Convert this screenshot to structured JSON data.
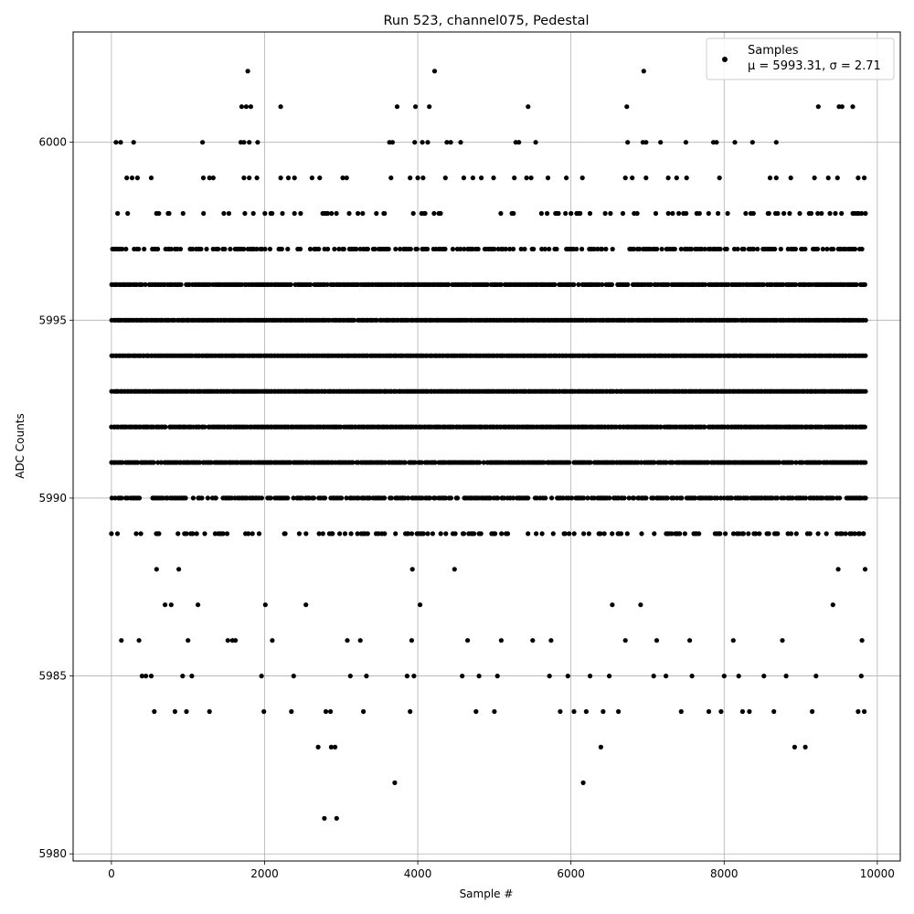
{
  "chart_data": {
    "type": "scatter",
    "title": "Run 523, channel075, Pedestal",
    "xlabel": "Sample #",
    "ylabel": "ADC Counts",
    "xlim": [
      -500,
      10300
    ],
    "ylim": [
      5979.8,
      6003.1
    ],
    "xticks": [
      0,
      2000,
      4000,
      6000,
      8000,
      10000
    ],
    "yticks": [
      5980,
      5985,
      5990,
      5995,
      6000
    ],
    "grid": true,
    "legend_position": "top-right",
    "series": [
      {
        "name": "Samples",
        "stats_label": "μ = 5993.31, σ = 2.71",
        "color": "#000000",
        "marker": "circle",
        "mean": 5993.31,
        "std": 2.71,
        "n_points": 9836,
        "x_range": [
          0,
          9835
        ],
        "points": [
          [
            0,
            5989
          ],
          [
            130,
            5986
          ],
          [
            360,
            5986
          ],
          [
            400,
            5985
          ],
          [
            450,
            5985
          ],
          [
            520,
            5985
          ],
          [
            560,
            5984
          ],
          [
            590,
            5988
          ],
          [
            700,
            5987
          ],
          [
            780,
            5987
          ],
          [
            830,
            5984
          ],
          [
            880,
            5988
          ],
          [
            930,
            5985
          ],
          [
            980,
            5984
          ],
          [
            1000,
            5986
          ],
          [
            1050,
            5985
          ],
          [
            1130,
            5987
          ],
          [
            1280,
            5984
          ],
          [
            1520,
            5986
          ],
          [
            1580,
            5986
          ],
          [
            1620,
            5986
          ],
          [
            1960,
            5985
          ],
          [
            1990,
            5984
          ],
          [
            2010,
            5987
          ],
          [
            2100,
            5986
          ],
          [
            2350,
            5984
          ],
          [
            2380,
            5985
          ],
          [
            2540,
            5987
          ],
          [
            2700,
            5983
          ],
          [
            2780,
            5981
          ],
          [
            2870,
            5983
          ],
          [
            2920,
            5983
          ],
          [
            2940,
            5981
          ],
          [
            2800,
            5984
          ],
          [
            2860,
            5984
          ],
          [
            3080,
            5986
          ],
          [
            3120,
            5985
          ],
          [
            3250,
            5986
          ],
          [
            3290,
            5984
          ],
          [
            3330,
            5985
          ],
          [
            3700,
            5982
          ],
          [
            3860,
            5985
          ],
          [
            3900,
            5984
          ],
          [
            3920,
            5986
          ],
          [
            3950,
            5985
          ],
          [
            3930,
            5988
          ],
          [
            4030,
            5987
          ],
          [
            4480,
            5988
          ],
          [
            4580,
            5985
          ],
          [
            4650,
            5986
          ],
          [
            4760,
            5984
          ],
          [
            4800,
            5985
          ],
          [
            5000,
            5984
          ],
          [
            5040,
            5985
          ],
          [
            5090,
            5986
          ],
          [
            5500,
            5986
          ],
          [
            5720,
            5985
          ],
          [
            5740,
            5986
          ],
          [
            5860,
            5984
          ],
          [
            5960,
            5985
          ],
          [
            6040,
            5984
          ],
          [
            6160,
            5982
          ],
          [
            6200,
            5984
          ],
          [
            6250,
            5985
          ],
          [
            6390,
            5983
          ],
          [
            6420,
            5984
          ],
          [
            6500,
            5985
          ],
          [
            6540,
            5987
          ],
          [
            6620,
            5984
          ],
          [
            6710,
            5986
          ],
          [
            6910,
            5987
          ],
          [
            7080,
            5985
          ],
          [
            7120,
            5986
          ],
          [
            7240,
            5985
          ],
          [
            7440,
            5984
          ],
          [
            7550,
            5986
          ],
          [
            7580,
            5985
          ],
          [
            7800,
            5984
          ],
          [
            7960,
            5984
          ],
          [
            8000,
            5985
          ],
          [
            8120,
            5986
          ],
          [
            8190,
            5985
          ],
          [
            8240,
            5984
          ],
          [
            8330,
            5984
          ],
          [
            8520,
            5985
          ],
          [
            8650,
            5984
          ],
          [
            8760,
            5986
          ],
          [
            8810,
            5985
          ],
          [
            8920,
            5983
          ],
          [
            9060,
            5983
          ],
          [
            9150,
            5984
          ],
          [
            9200,
            5985
          ],
          [
            9420,
            5987
          ],
          [
            9490,
            5988
          ],
          [
            9750,
            5984
          ],
          [
            9790,
            5985
          ],
          [
            9830,
            5984
          ],
          [
            9800,
            5986
          ],
          [
            9840,
            5988
          ],
          [
            9820,
            5989
          ],
          [
            1780,
            6002
          ],
          [
            4220,
            6002
          ],
          [
            6950,
            6002
          ],
          [
            1700,
            6001
          ],
          [
            1760,
            6001
          ],
          [
            1820,
            6001
          ],
          [
            2210,
            6001
          ],
          [
            3730,
            6001
          ],
          [
            3970,
            6001
          ],
          [
            4150,
            6001
          ],
          [
            5440,
            6001
          ],
          [
            6730,
            6001
          ],
          [
            9230,
            6001
          ],
          [
            9500,
            6001
          ],
          [
            9540,
            6001
          ],
          [
            9680,
            6001
          ],
          [
            60,
            6000
          ],
          [
            120,
            6000
          ],
          [
            290,
            6000
          ],
          [
            1190,
            6000
          ],
          [
            1690,
            6000
          ],
          [
            1730,
            6000
          ],
          [
            1800,
            6000
          ],
          [
            1910,
            6000
          ],
          [
            3630,
            6000
          ],
          [
            3670,
            6000
          ],
          [
            3960,
            6000
          ],
          [
            4060,
            6000
          ],
          [
            4130,
            6000
          ],
          [
            4380,
            6000
          ],
          [
            4430,
            6000
          ],
          [
            4560,
            6000
          ],
          [
            5280,
            6000
          ],
          [
            5320,
            6000
          ],
          [
            5540,
            6000
          ],
          [
            6740,
            6000
          ],
          [
            6940,
            6000
          ],
          [
            6980,
            6000
          ],
          [
            7170,
            6000
          ],
          [
            7500,
            6000
          ],
          [
            7860,
            6000
          ],
          [
            7900,
            6000
          ],
          [
            8140,
            6000
          ],
          [
            8370,
            6000
          ],
          [
            8680,
            6000
          ],
          [
            200,
            5999
          ],
          [
            270,
            5999
          ],
          [
            340,
            5999
          ],
          [
            520,
            5999
          ],
          [
            1200,
            5999
          ],
          [
            1280,
            5999
          ],
          [
            1330,
            5999
          ],
          [
            1730,
            5999
          ],
          [
            1800,
            5999
          ],
          [
            1900,
            5999
          ],
          [
            2210,
            5999
          ],
          [
            2310,
            5999
          ],
          [
            2390,
            5999
          ],
          [
            2620,
            5999
          ],
          [
            2720,
            5999
          ],
          [
            3020,
            5999
          ],
          [
            3070,
            5999
          ],
          [
            3650,
            5999
          ],
          [
            3900,
            5999
          ],
          [
            4000,
            5999
          ],
          [
            4070,
            5999
          ],
          [
            4360,
            5999
          ],
          [
            4600,
            5999
          ],
          [
            4720,
            5999
          ],
          [
            4830,
            5999
          ],
          [
            4990,
            5999
          ],
          [
            5260,
            5999
          ],
          [
            5420,
            5999
          ],
          [
            5480,
            5999
          ],
          [
            5700,
            5999
          ],
          [
            5940,
            5999
          ],
          [
            6150,
            5999
          ],
          [
            6710,
            5999
          ],
          [
            6800,
            5999
          ],
          [
            6980,
            5999
          ],
          [
            7270,
            5999
          ],
          [
            7380,
            5999
          ],
          [
            7510,
            5999
          ],
          [
            7940,
            5999
          ],
          [
            8600,
            5999
          ],
          [
            8680,
            5999
          ],
          [
            8870,
            5999
          ],
          [
            9180,
            5999
          ],
          [
            9360,
            5999
          ],
          [
            9480,
            5999
          ],
          [
            9750,
            5999
          ],
          [
            9830,
            5999
          ]
        ],
        "dense_levels": [
          {
            "y": 5998,
            "density": 0.2
          },
          {
            "y": 5997,
            "density": 0.55
          },
          {
            "y": 5996,
            "density": 0.9
          },
          {
            "y": 5995,
            "density": 0.97
          },
          {
            "y": 5994,
            "density": 1.0
          },
          {
            "y": 5993,
            "density": 1.0
          },
          {
            "y": 5992,
            "density": 0.97
          },
          {
            "y": 5991,
            "density": 0.9
          },
          {
            "y": 5990,
            "density": 0.7
          },
          {
            "y": 5989,
            "density": 0.3
          }
        ]
      }
    ]
  }
}
